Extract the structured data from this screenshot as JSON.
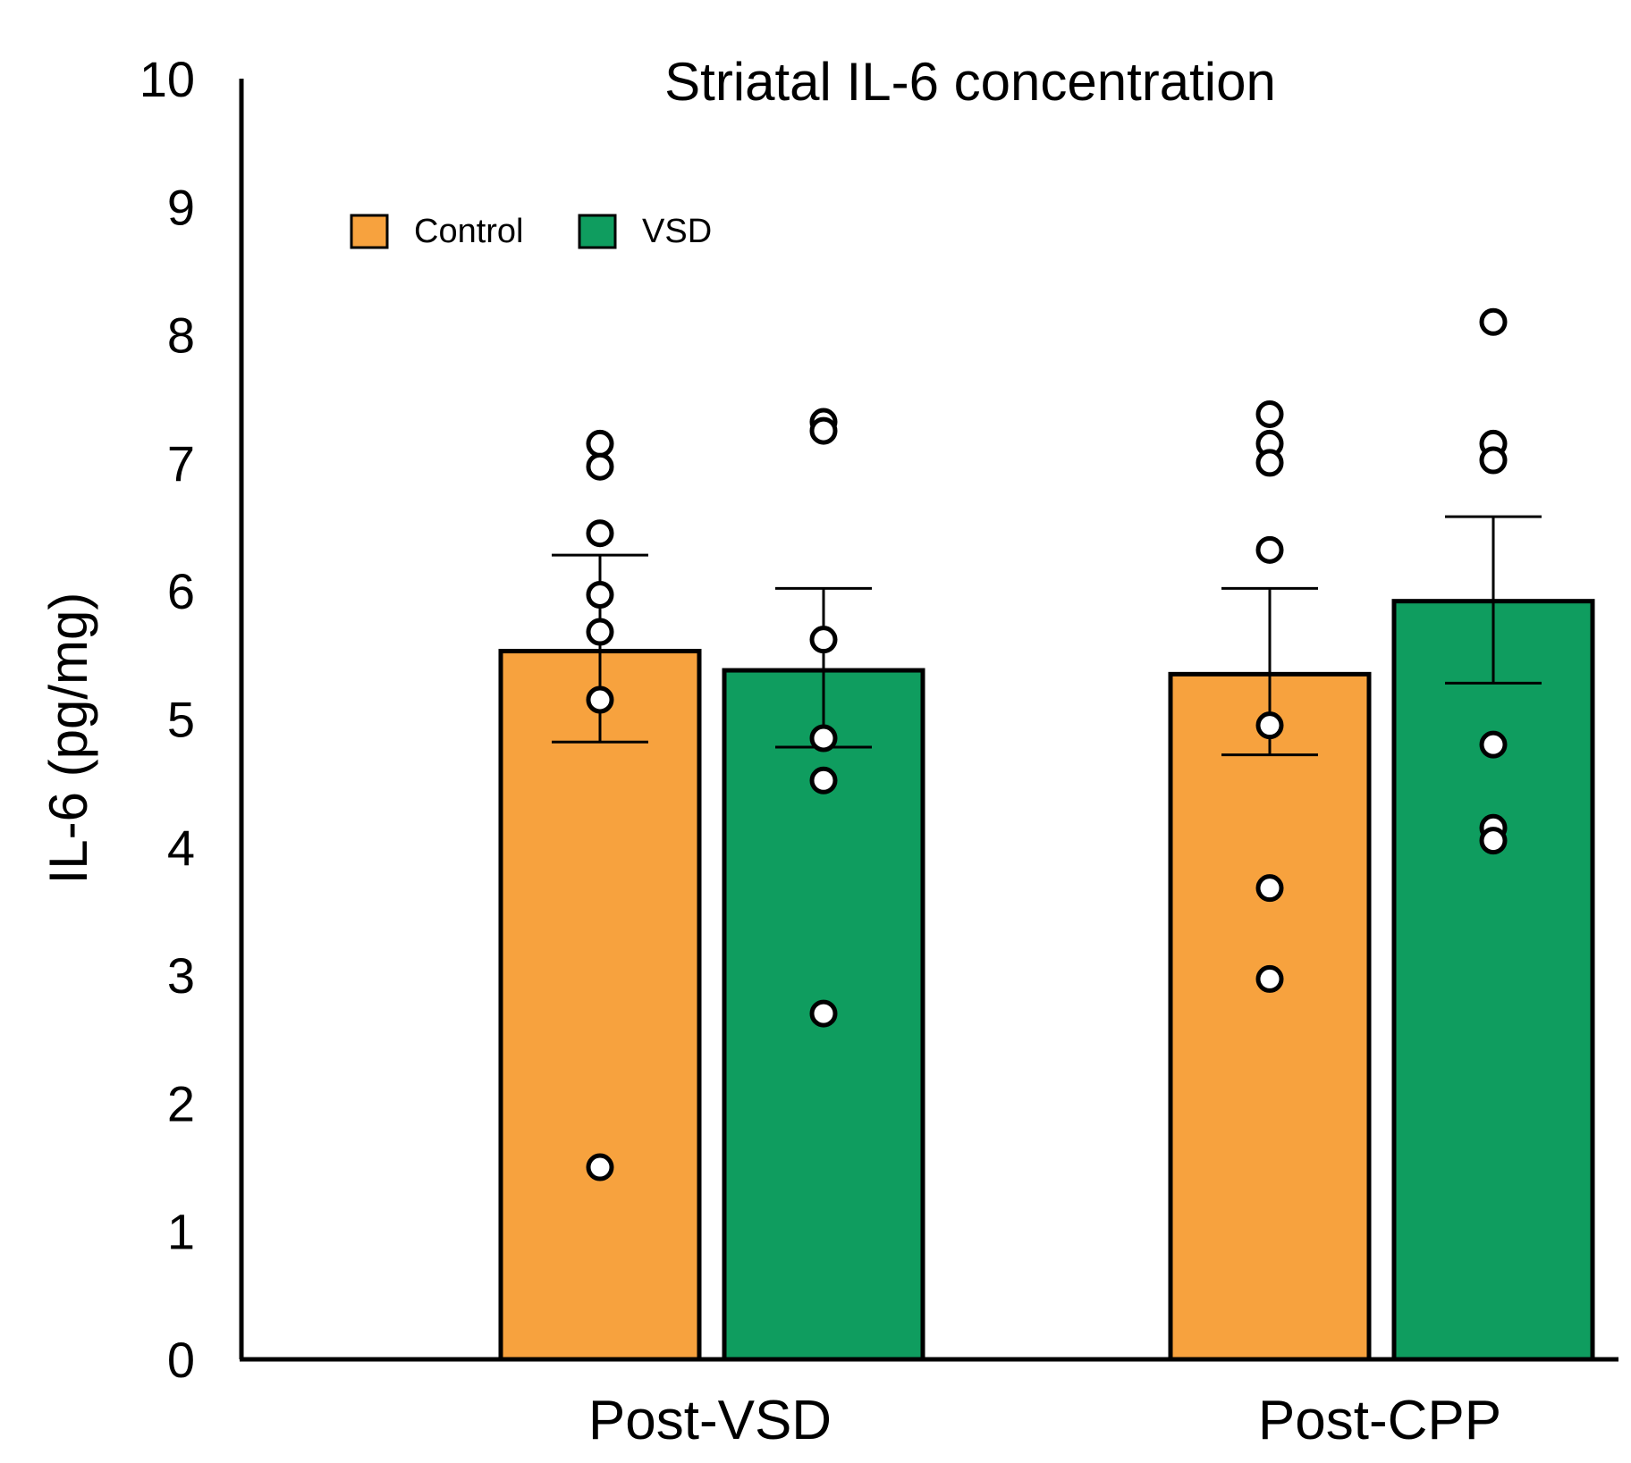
{
  "chart_data": {
    "type": "bar",
    "title": "Striatal IL-6 concentration",
    "xlabel": "",
    "ylabel": "IL-6 (pg/mg)",
    "ylim": [
      0,
      10
    ],
    "yticks": [
      "0",
      "1",
      "2",
      "3",
      "4",
      "5",
      "6",
      "7",
      "8",
      "9",
      "10"
    ],
    "categories": [
      "Post-VSD",
      "Post-CPP"
    ],
    "legend_position": "top-left",
    "series": [
      {
        "name": "Control",
        "color": "#f7a23e",
        "values": [
          5.53,
          5.35
        ],
        "error_low": [
          4.82,
          4.72
        ],
        "error_high": [
          6.28,
          6.02
        ],
        "points": [
          [
            7.15,
            6.97,
            6.45,
            5.97,
            5.68,
            5.15,
            1.5
          ],
          [
            7.38,
            7.15,
            7.0,
            6.32,
            4.95,
            3.68,
            2.97
          ]
        ]
      },
      {
        "name": "VSD",
        "color": "#0f9d5f",
        "values": [
          5.38,
          5.92
        ],
        "error_low": [
          4.78,
          5.28
        ],
        "error_high": [
          6.02,
          6.58
        ],
        "points": [
          [
            7.32,
            7.25,
            5.62,
            4.85,
            4.52,
            2.7
          ],
          [
            8.1,
            7.15,
            7.02,
            4.8,
            4.15,
            4.05
          ]
        ]
      }
    ]
  }
}
